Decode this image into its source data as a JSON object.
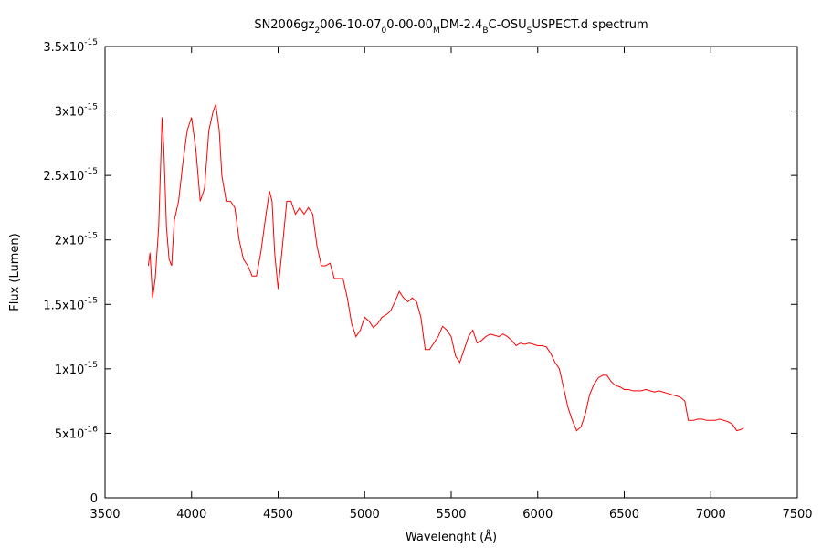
{
  "chart_data": {
    "type": "line",
    "title": [
      {
        "text": "SN2006gz",
        "sub": false
      },
      {
        "text": "2",
        "sub": true
      },
      {
        "text": "006-10-07",
        "sub": false
      },
      {
        "text": "0",
        "sub": true
      },
      {
        "text": "0-00-00",
        "sub": false
      },
      {
        "text": "M",
        "sub": true
      },
      {
        "text": "DM-2.4",
        "sub": false
      },
      {
        "text": "B",
        "sub": true
      },
      {
        "text": "C-OSU",
        "sub": false
      },
      {
        "text": "S",
        "sub": true
      },
      {
        "text": "USPECT.d spectrum",
        "sub": false
      }
    ],
    "xlabel": "Wavelenght (Å)",
    "ylabel": "Flux (Lumen)",
    "xlim": [
      3500,
      7500
    ],
    "xticks": [
      3500,
      4000,
      4500,
      5000,
      5500,
      6000,
      6500,
      7000,
      7500
    ],
    "ylim": [
      0,
      3.5e-15
    ],
    "yticks": [
      0,
      {
        "value": 5e-16,
        "label": "5x10",
        "sup": "-16"
      },
      {
        "value": 1e-15,
        "label": "1x10",
        "sup": "-15"
      },
      {
        "value": 1.5e-15,
        "label": "1.5x10",
        "sup": "-15"
      },
      {
        "value": 2e-15,
        "label": "2x10",
        "sup": "-15"
      },
      {
        "value": 2.5e-15,
        "label": "2.5x10",
        "sup": "-15"
      },
      {
        "value": 3e-15,
        "label": "3x10",
        "sup": "-15"
      },
      {
        "value": 3.5e-15,
        "label": "3.5x10",
        "sup": "-15"
      }
    ],
    "grid": false,
    "series": [
      {
        "color": "#ff0000",
        "x": [
          3750,
          3760,
          3775,
          3790,
          3810,
          3830,
          3840,
          3855,
          3870,
          3885,
          3900,
          3925,
          3950,
          3975,
          4000,
          4025,
          4050,
          4075,
          4100,
          4125,
          4140,
          4160,
          4175,
          4200,
          4225,
          4250,
          4275,
          4300,
          4325,
          4350,
          4375,
          4400,
          4425,
          4450,
          4465,
          4480,
          4500,
          4525,
          4550,
          4575,
          4600,
          4625,
          4650,
          4675,
          4700,
          4725,
          4750,
          4775,
          4800,
          4825,
          4850,
          4875,
          4900,
          4925,
          4950,
          4975,
          5000,
          5025,
          5050,
          5075,
          5100,
          5125,
          5150,
          5175,
          5200,
          5225,
          5250,
          5275,
          5300,
          5325,
          5350,
          5375,
          5400,
          5425,
          5450,
          5475,
          5500,
          5525,
          5550,
          5575,
          5600,
          5625,
          5650,
          5675,
          5700,
          5725,
          5750,
          5775,
          5800,
          5825,
          5850,
          5875,
          5900,
          5925,
          5950,
          5975,
          6000,
          6025,
          6050,
          6075,
          6100,
          6125,
          6150,
          6175,
          6200,
          6225,
          6250,
          6275,
          6300,
          6325,
          6350,
          6375,
          6400,
          6425,
          6450,
          6475,
          6500,
          6525,
          6550,
          6575,
          6600,
          6625,
          6650,
          6675,
          6700,
          6725,
          6750,
          6775,
          6800,
          6825,
          6850,
          6870,
          6900,
          6925,
          6950,
          6975,
          7000,
          7025,
          7050,
          7075,
          7100,
          7125,
          7150,
          7175,
          7190
        ],
        "values": [
          1.8e-15,
          1.9e-15,
          1.55e-15,
          1.7e-15,
          2.1e-15,
          2.95e-15,
          2.7e-15,
          2.1e-15,
          1.85e-15,
          1.8e-15,
          2.15e-15,
          2.3e-15,
          2.6e-15,
          2.85e-15,
          2.95e-15,
          2.7e-15,
          2.3e-15,
          2.4e-15,
          2.85e-15,
          3e-15,
          3.05e-15,
          2.85e-15,
          2.5e-15,
          2.3e-15,
          2.3e-15,
          2.25e-15,
          2e-15,
          1.85e-15,
          1.8e-15,
          1.72e-15,
          1.72e-15,
          1.9e-15,
          2.15e-15,
          2.38e-15,
          2.3e-15,
          1.9e-15,
          1.62e-15,
          1.95e-15,
          2.3e-15,
          2.3e-15,
          2.2e-15,
          2.25e-15,
          2.2e-15,
          2.25e-15,
          2.2e-15,
          1.95e-15,
          1.8e-15,
          1.8e-15,
          1.82e-15,
          1.7e-15,
          1.7e-15,
          1.7e-15,
          1.55e-15,
          1.35e-15,
          1.25e-15,
          1.3e-15,
          1.4e-15,
          1.37e-15,
          1.32e-15,
          1.35e-15,
          1.4e-15,
          1.42e-15,
          1.45e-15,
          1.52e-15,
          1.6e-15,
          1.55e-15,
          1.52e-15,
          1.55e-15,
          1.52e-15,
          1.4e-15,
          1.15e-15,
          1.15e-15,
          1.2e-15,
          1.25e-15,
          1.33e-15,
          1.3e-15,
          1.25e-15,
          1.1e-15,
          1.05e-15,
          1.15e-15,
          1.25e-15,
          1.3e-15,
          1.2e-15,
          1.22e-15,
          1.25e-15,
          1.27e-15,
          1.26e-15,
          1.25e-15,
          1.27e-15,
          1.25e-15,
          1.22e-15,
          1.18e-15,
          1.2e-15,
          1.19e-15,
          1.2e-15,
          1.19e-15,
          1.18e-15,
          1.18e-15,
          1.17e-15,
          1.12e-15,
          1.05e-15,
          1e-15,
          8.5e-16,
          7e-16,
          6e-16,
          5.2e-16,
          5.5e-16,
          6.5e-16,
          8e-16,
          8.8e-16,
          9.3e-16,
          9.5e-16,
          9.5e-16,
          9e-16,
          8.7e-16,
          8.6e-16,
          8.4e-16,
          8.4e-16,
          8.3e-16,
          8.3e-16,
          8.3e-16,
          8.4e-16,
          8.3e-16,
          8.2e-16,
          8.3e-16,
          8.2e-16,
          8.1e-16,
          8e-16,
          7.9e-16,
          7.8e-16,
          7.5e-16,
          6e-16,
          6e-16,
          6.1e-16,
          6.1e-16,
          6e-16,
          6e-16,
          6e-16,
          6.1e-16,
          6e-16,
          5.9e-16,
          5.7e-16,
          5.2e-16,
          5.3e-16,
          5.4e-16
        ]
      }
    ]
  }
}
